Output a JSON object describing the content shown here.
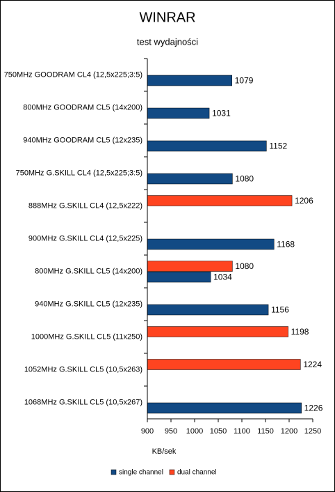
{
  "chart_data": {
    "type": "hbar",
    "title": "WINRAR",
    "subtitle": "test wydajności",
    "x_label": "KB/sek",
    "categories": [
      "750MHz GOODRAM CL4 (12,5x225;3:5)",
      "800MHz GOODRAM CL5 (14x200)",
      "940MHz GOODRAM CL5 (12x235)",
      "750MHz G.SKILL CL4 (12,5x225;3:5)",
      "888MHz G.SKILL CL4 (12,5x222)",
      "900MHz G.SKILL CL4 (12,5x225)",
      "800MHz G.SKILL CL5 (14x200)",
      "940MHz G.SKILL CL5 (12x235)",
      "1000MHz G.SKILL CL5 (11x250)",
      "1052MHz G.SKILL CL5 (10,5x263)",
      "1068MHz G.SKILL CL5 (10,5x267)"
    ],
    "series": [
      {
        "name": "single channel",
        "color": "#124a84",
        "values": [
          1079,
          1031,
          1152,
          1080,
          null,
          1168,
          1034,
          1156,
          null,
          null,
          1226
        ]
      },
      {
        "name": "dual channel",
        "color": "#ff4420",
        "values": [
          null,
          null,
          null,
          null,
          1206,
          null,
          1080,
          null,
          1198,
          1224,
          null
        ]
      }
    ],
    "xlim": [
      900,
      1250
    ],
    "xticks": [
      900,
      950,
      1000,
      1050,
      1100,
      1150,
      1200,
      1250
    ],
    "legend": "bottom"
  }
}
